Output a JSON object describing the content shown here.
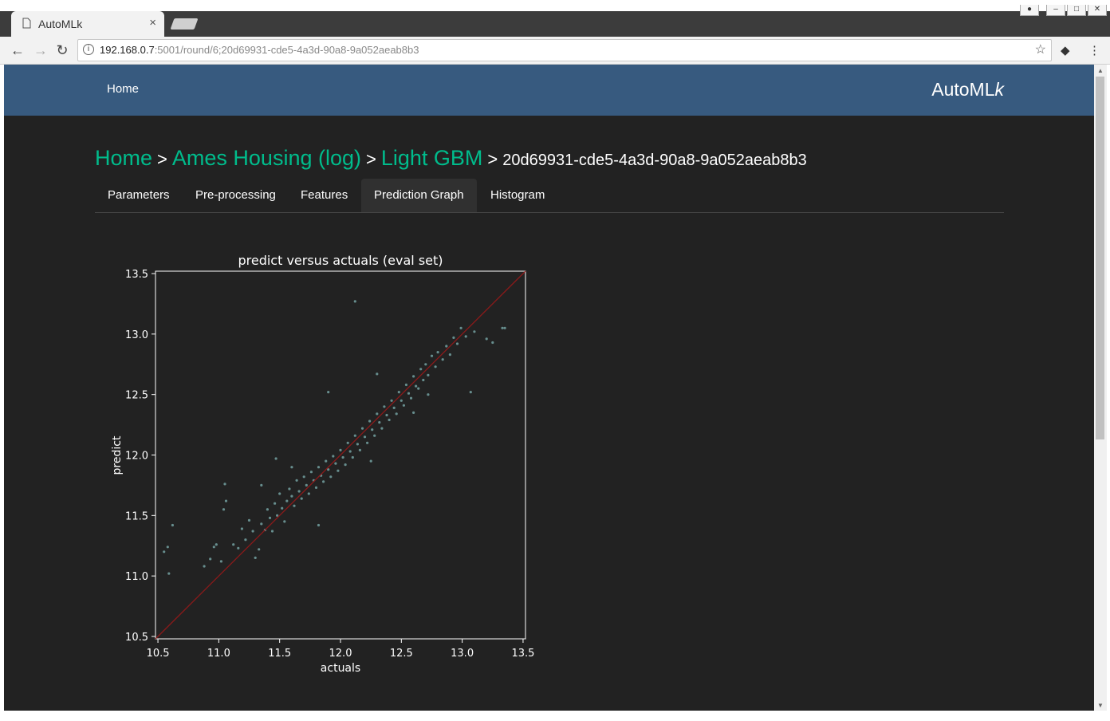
{
  "browser": {
    "tab_title": "AutoMLk",
    "tab_close": "×",
    "url_host": "192.168.0.7",
    "url_path": ":5001/round/6;20d69931-cde5-4a3d-90a8-9a052aeab8b3",
    "icons": [
      "page-icon",
      "back-arrow-icon",
      "forward-arrow-icon",
      "reload-icon",
      "info-icon",
      "star-icon",
      "extension-icon",
      "menu-icon"
    ]
  },
  "navbar": {
    "home_label": "Home",
    "brand_main": "AutoML",
    "brand_italic": "k",
    "color": "#375a7f"
  },
  "breadcrumb": {
    "home": "Home",
    "dataset": "Ames Housing (log)",
    "model": "Light GBM",
    "round_id": "20d69931-cde5-4a3d-90a8-9a052aeab8b3",
    "separator": ">"
  },
  "tabs": [
    {
      "label": "Parameters",
      "active": false
    },
    {
      "label": "Pre-processing",
      "active": false
    },
    {
      "label": "Features",
      "active": false
    },
    {
      "label": "Prediction Graph",
      "active": true
    },
    {
      "label": "Histogram",
      "active": false
    }
  ],
  "accent_color": "#00bc8c",
  "chart_data": {
    "type": "scatter",
    "title": "predict versus actuals (eval set)",
    "xlabel": "actuals",
    "ylabel": "predict",
    "xlim": [
      10.48,
      13.52
    ],
    "ylim": [
      10.48,
      13.52
    ],
    "xticks": [
      "10.5",
      "11.0",
      "11.5",
      "12.0",
      "12.5",
      "13.0",
      "13.5"
    ],
    "yticks": [
      "10.5",
      "11.0",
      "11.5",
      "12.0",
      "12.5",
      "13.0",
      "13.5"
    ],
    "grid": false,
    "reference_line": {
      "from": [
        10.48,
        10.48
      ],
      "to": [
        13.52,
        13.52
      ],
      "color": "#8b1a1a"
    },
    "point_color": "#7fb3b3",
    "series": [
      {
        "points": [
          [
            10.55,
            11.2
          ],
          [
            10.59,
            11.02
          ],
          [
            10.58,
            11.24
          ],
          [
            10.62,
            11.42
          ],
          [
            10.88,
            11.08
          ],
          [
            10.93,
            11.14
          ],
          [
            10.96,
            11.24
          ],
          [
            10.98,
            11.26
          ],
          [
            11.02,
            11.12
          ],
          [
            11.04,
            11.55
          ],
          [
            11.06,
            11.62
          ],
          [
            11.12,
            11.26
          ],
          [
            11.16,
            11.23
          ],
          [
            11.19,
            11.39
          ],
          [
            11.05,
            11.76
          ],
          [
            11.22,
            11.3
          ],
          [
            11.25,
            11.46
          ],
          [
            11.28,
            11.37
          ],
          [
            11.3,
            11.15
          ],
          [
            11.33,
            11.22
          ],
          [
            11.35,
            11.43
          ],
          [
            11.38,
            11.38
          ],
          [
            11.4,
            11.55
          ],
          [
            11.42,
            11.48
          ],
          [
            11.44,
            11.37
          ],
          [
            11.46,
            11.6
          ],
          [
            11.48,
            11.5
          ],
          [
            11.5,
            11.68
          ],
          [
            11.52,
            11.56
          ],
          [
            11.54,
            11.45
          ],
          [
            11.56,
            11.62
          ],
          [
            11.58,
            11.72
          ],
          [
            11.6,
            11.66
          ],
          [
            11.62,
            11.58
          ],
          [
            11.64,
            11.79
          ],
          [
            11.66,
            11.7
          ],
          [
            11.68,
            11.64
          ],
          [
            11.7,
            11.82
          ],
          [
            11.72,
            11.75
          ],
          [
            11.74,
            11.68
          ],
          [
            11.76,
            11.86
          ],
          [
            11.78,
            11.79
          ],
          [
            11.8,
            11.73
          ],
          [
            11.82,
            11.9
          ],
          [
            11.84,
            11.83
          ],
          [
            11.86,
            11.78
          ],
          [
            11.88,
            11.95
          ],
          [
            11.9,
            11.88
          ],
          [
            11.92,
            11.82
          ],
          [
            11.94,
            11.99
          ],
          [
            11.96,
            11.93
          ],
          [
            11.98,
            11.87
          ],
          [
            12.0,
            12.04
          ],
          [
            12.02,
            11.98
          ],
          [
            12.04,
            11.92
          ],
          [
            12.06,
            12.1
          ],
          [
            12.08,
            12.03
          ],
          [
            12.1,
            11.98
          ],
          [
            12.12,
            12.16
          ],
          [
            12.14,
            12.09
          ],
          [
            12.16,
            12.04
          ],
          [
            12.18,
            12.22
          ],
          [
            12.2,
            12.15
          ],
          [
            12.22,
            12.1
          ],
          [
            12.24,
            12.28
          ],
          [
            12.26,
            12.21
          ],
          [
            12.28,
            12.16
          ],
          [
            12.3,
            12.34
          ],
          [
            12.32,
            12.27
          ],
          [
            12.34,
            12.22
          ],
          [
            12.36,
            12.4
          ],
          [
            12.38,
            12.33
          ],
          [
            12.4,
            12.29
          ],
          [
            12.42,
            12.45
          ],
          [
            12.44,
            12.39
          ],
          [
            12.46,
            12.34
          ],
          [
            12.48,
            12.52
          ],
          [
            12.5,
            12.45
          ],
          [
            12.52,
            12.41
          ],
          [
            12.54,
            12.58
          ],
          [
            12.56,
            12.51
          ],
          [
            12.58,
            12.47
          ],
          [
            12.6,
            12.65
          ],
          [
            12.62,
            12.57
          ],
          [
            12.64,
            12.55
          ],
          [
            12.66,
            12.71
          ],
          [
            12.68,
            12.62
          ],
          [
            12.7,
            12.75
          ],
          [
            12.72,
            12.66
          ],
          [
            12.75,
            12.82
          ],
          [
            12.78,
            12.73
          ],
          [
            12.8,
            12.85
          ],
          [
            12.84,
            12.79
          ],
          [
            12.87,
            12.9
          ],
          [
            12.9,
            12.83
          ],
          [
            12.93,
            12.97
          ],
          [
            12.96,
            12.92
          ],
          [
            12.99,
            13.05
          ],
          [
            13.03,
            12.98
          ],
          [
            13.1,
            13.02
          ],
          [
            13.2,
            12.96
          ],
          [
            13.25,
            12.93
          ],
          [
            13.33,
            13.05
          ],
          [
            13.35,
            13.05
          ],
          [
            13.07,
            12.52
          ],
          [
            12.12,
            13.27
          ],
          [
            11.9,
            12.52
          ],
          [
            12.6,
            12.35
          ],
          [
            12.72,
            12.5
          ],
          [
            11.6,
            11.9
          ],
          [
            11.35,
            11.75
          ],
          [
            11.82,
            11.42
          ],
          [
            11.47,
            11.97
          ],
          [
            12.3,
            12.67
          ],
          [
            12.25,
            11.95
          ]
        ]
      }
    ]
  }
}
